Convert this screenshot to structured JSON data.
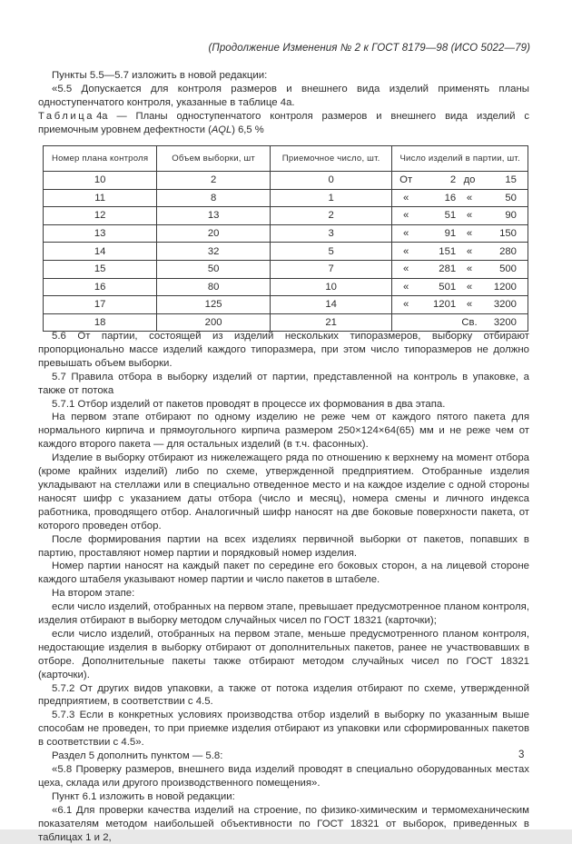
{
  "header": {
    "note": "(Продолжение Изменения № 2 к ГОСТ 8179—98 (ИСО 5022—79)"
  },
  "intro": [
    "Пункты 5.5—5.7 изложить в новой редакции:",
    "«5.5 Допускается для контроля размеров и внешнего вида изделий применять планы одноступенчатого контроля, указанные в таблице 4а."
  ],
  "table": {
    "caption_word": "Таблица",
    "caption_num": "4а",
    "caption_pre": " — Планы одноступенчатого контроля размеров и внешнего вида изделий с приемочным уровнем дефектности (",
    "caption_aql": "AQL",
    "caption_post": ") 6,5 %",
    "columns": [
      "Номер плана контроля",
      "Объем выборки, шт",
      "Приемочное число, шт.",
      "Число изделий в партии, шт."
    ],
    "rows": [
      {
        "plan": "10",
        "sample": "2",
        "accept": "0",
        "lot": [
          "От",
          "2",
          "до",
          "15"
        ]
      },
      {
        "plan": "11",
        "sample": "8",
        "accept": "1",
        "lot": [
          "«",
          "16",
          "«",
          "50"
        ]
      },
      {
        "plan": "12",
        "sample": "13",
        "accept": "2",
        "lot": [
          "«",
          "51",
          "«",
          "90"
        ]
      },
      {
        "plan": "13",
        "sample": "20",
        "accept": "3",
        "lot": [
          "«",
          "91",
          "«",
          "150"
        ]
      },
      {
        "plan": "14",
        "sample": "32",
        "accept": "5",
        "lot": [
          "«",
          "151",
          "«",
          "280"
        ]
      },
      {
        "plan": "15",
        "sample": "50",
        "accept": "7",
        "lot": [
          "«",
          "281",
          "«",
          "500"
        ]
      },
      {
        "plan": "16",
        "sample": "80",
        "accept": "10",
        "lot": [
          "«",
          "501",
          "«",
          "1200"
        ]
      },
      {
        "plan": "17",
        "sample": "125",
        "accept": "14",
        "lot": [
          "«",
          "1201",
          "«",
          "3200"
        ]
      },
      {
        "plan": "18",
        "sample": "200",
        "accept": "21",
        "lot": [
          "",
          "",
          "Св.",
          "3200"
        ]
      }
    ]
  },
  "body": [
    "5.6 От партии, состоящей из изделий нескольких типоразмеров, выборку отбирают пропорционально массе изделий каждого типоразмера, при этом число типоразмеров не должно превышать объем выборки.",
    "5.7 Правила отбора в выборку изделий от партии, представленной на контроль в упаковке, а также от потока",
    "5.7.1 Отбор изделий от пакетов проводят в процессе их формования в два этапа.",
    "На первом этапе отбирают по одному изделию не реже чем от каждого пятого пакета для нормального кирпича и прямоугольного кирпича размером 250×124×64(65) мм и не реже чем от каждого второго пакета — для остальных изделий (в т.ч. фасонных).",
    "Изделие в выборку отбирают из нижележащего ряда по отношению к верхнему на момент отбора (кроме крайних изделий) либо по схеме, утвержденной предприятием. Отобранные изделия укладывают на стеллажи или в специально отведенное место и на каждое изделие с одной стороны наносят шифр с указанием даты отбора (число и месяц), номера смены и личного индекса работника, проводящего отбор. Аналогичный шифр наносят на две боковые поверхности пакета, от которого проведен отбор.",
    "После формирования партии на всех изделиях первичной выборки от пакетов, попавших в партию, проставляют номер партии и порядковый номер изделия.",
    "Номер партии наносят на каждый пакет по середине его боковых сторон, а на лицевой стороне каждого штабеля указывают номер партии и число пакетов в штабеле.",
    "На втором этапе:",
    "если число изделий, отобранных на первом этапе, превышает предусмотренное планом контроля, изделия отбирают в выборку методом случайных чисел по ГОСТ 18321 (карточки);",
    "если число изделий, отобранных на первом этапе, меньше предусмотренного планом контроля, недостающие изделия в выборку отбирают от дополнительных пакетов, ранее не участвовавших в отборе. Дополнительные пакеты также отбирают методом случайных чисел по ГОСТ 18321 (карточки).",
    "5.7.2 От других видов упаковки, а также от потока изделия отбирают по схеме, утвержденной предприятием, в соответствии с 4.5.",
    "5.7.3 Если в конкретных условиях производства отбор изделий в выборку по указанным выше способам не проведен, то при приемке изделия отбирают из упаковки или сформированных пакетов в соответствии с 4.5».",
    "Раздел 5 дополнить пунктом — 5.8:",
    "«5.8 Проверку размеров, внешнего вида изделий проводят в специально оборудованных местах цеха, склада или другого производственного помещения».",
    "Пункт 6.1 изложить в новой редакции:",
    "«6.1 Для проверки качества изделий на строение, по физико-химическим и термомеханическим показателям методом наибольшей объективности по ГОСТ 18321 от выборок, приведенных в таблицах 1 и 2,"
  ],
  "footer": {
    "page_number": "3"
  }
}
